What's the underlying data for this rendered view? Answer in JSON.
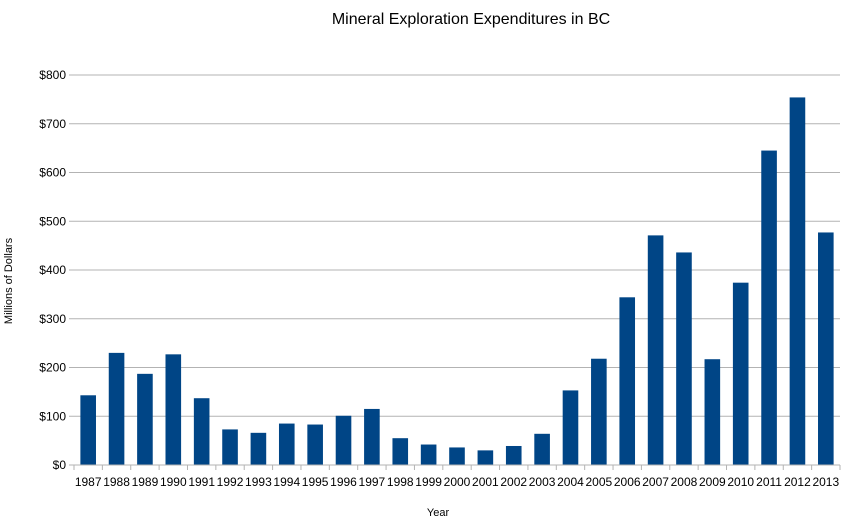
{
  "chart_data": {
    "type": "bar",
    "title": "Mineral Exploration Expenditures in BC",
    "xlabel": "Year",
    "ylabel": "Millions of Dollars",
    "ylim": [
      0,
      800
    ],
    "yticks": [
      "$0",
      "$100",
      "$200",
      "$300",
      "$400",
      "$500",
      "$600",
      "$700",
      "$800"
    ],
    "grid": true,
    "bar_color": "#004586",
    "categories": [
      "1987",
      "1988",
      "1989",
      "1990",
      "1991",
      "1992",
      "1993",
      "1994",
      "1995",
      "1996",
      "1997",
      "1998",
      "1999",
      "2000",
      "2001",
      "2002",
      "2003",
      "2004",
      "2005",
      "2006",
      "2007",
      "2008",
      "2009",
      "2010",
      "2011",
      "2012",
      "2013"
    ],
    "values": [
      143,
      230,
      187,
      227,
      137,
      73,
      66,
      85,
      83,
      101,
      115,
      55,
      42,
      36,
      30,
      39,
      64,
      153,
      218,
      344,
      471,
      436,
      217,
      374,
      645,
      754,
      477
    ]
  }
}
